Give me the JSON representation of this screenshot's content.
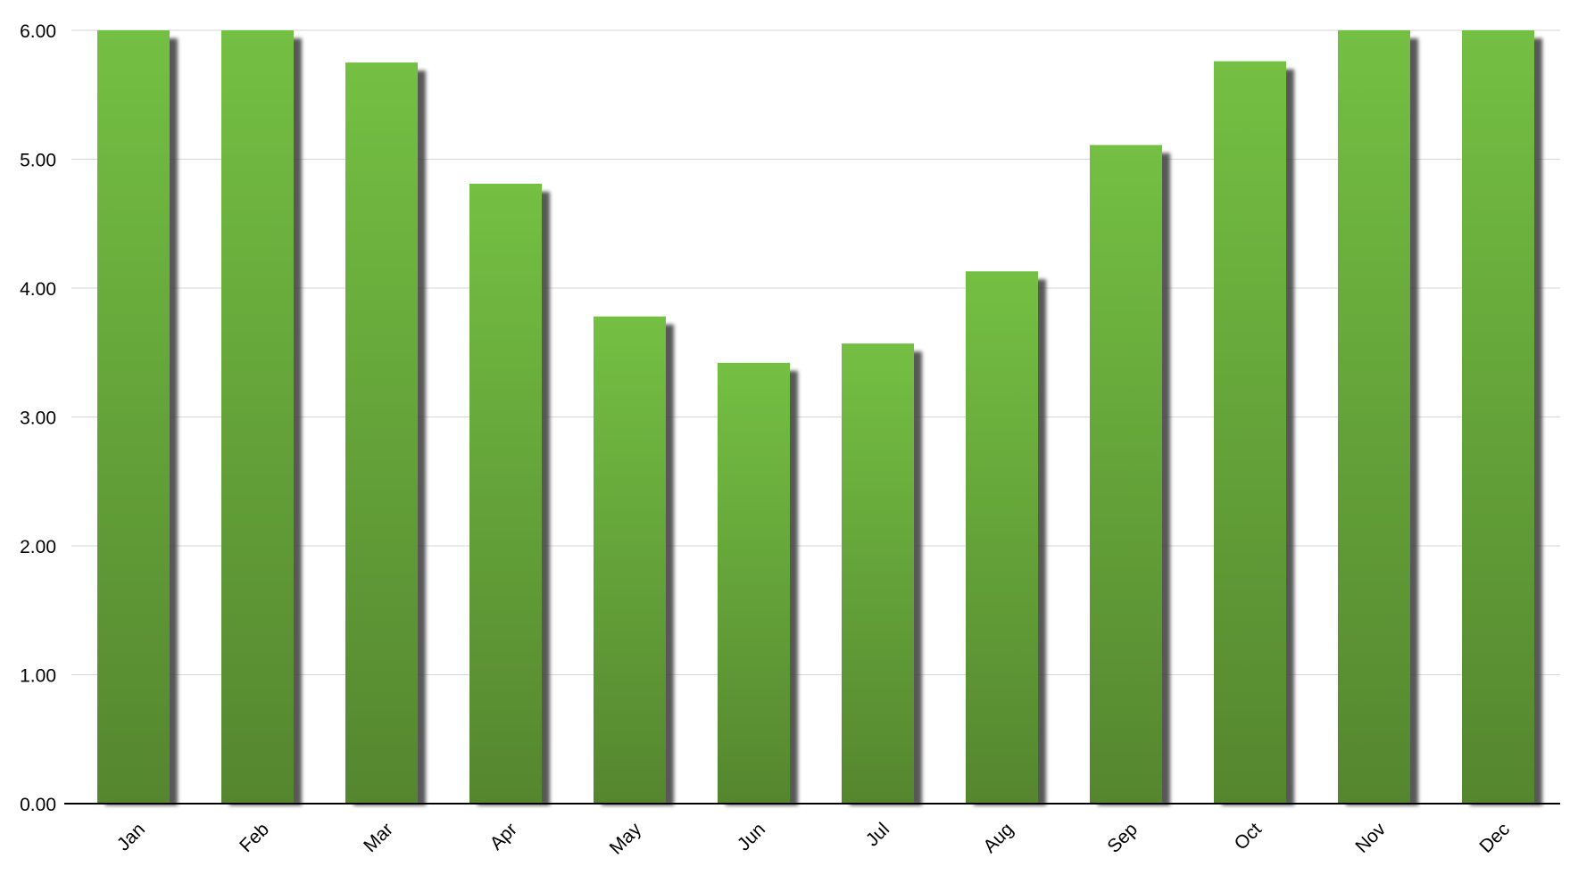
{
  "chart_data": {
    "type": "bar",
    "title": "",
    "xlabel": "",
    "ylabel": "",
    "categories": [
      "Jan",
      "Feb",
      "Mar",
      "Apr",
      "May",
      "Jun",
      "Jul",
      "Aug",
      "Sep",
      "Oct",
      "Nov",
      "Dec"
    ],
    "values": [
      6.0,
      6.0,
      5.75,
      4.81,
      3.78,
      3.42,
      3.57,
      4.13,
      5.11,
      5.76,
      6.0,
      6.0
    ],
    "ylim": [
      0,
      6
    ],
    "yticks": [
      "0.00",
      "1.00",
      "2.00",
      "3.00",
      "4.00",
      "5.00",
      "6.00"
    ],
    "grid": true,
    "legend": "none",
    "colors": {
      "bar_top": "#74c043",
      "bar_bottom": "#55862f",
      "shadow": "#3a3a3a",
      "grid": "#d6d6d6",
      "axis": "#000000"
    }
  }
}
